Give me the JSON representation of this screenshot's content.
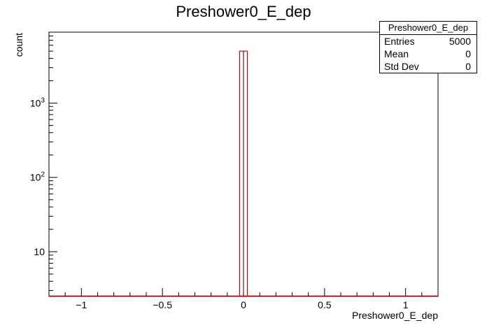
{
  "chart_data": {
    "type": "bar",
    "title": "Preshower0_E_dep",
    "xlabel": "Preshower0_E_dep",
    "ylabel": "count",
    "xlim": [
      -1.2,
      1.2
    ],
    "ylim": [
      2.5,
      9000
    ],
    "yscale": "log",
    "x_ticks": [
      {
        "value": -1,
        "label": "−1"
      },
      {
        "value": -0.5,
        "label": "−0.5"
      },
      {
        "value": 0,
        "label": "0"
      },
      {
        "value": 0.5,
        "label": "0.5"
      },
      {
        "value": 1,
        "label": "1"
      }
    ],
    "y_ticks": [
      {
        "value": 10,
        "base": "10",
        "exp": ""
      },
      {
        "value": 100,
        "base": "10",
        "exp": "2"
      },
      {
        "value": 1000,
        "base": "10",
        "exp": "3"
      }
    ],
    "bins": [
      {
        "x_low": -0.024,
        "x_high": 0.024,
        "value": 5000
      }
    ],
    "line_color": "#cc0000",
    "legend_placement": "top-right",
    "stats": {
      "name": "Preshower0_E_dep",
      "rows": [
        {
          "label": "Entries",
          "value": "5000"
        },
        {
          "label": "Mean",
          "value": "0"
        },
        {
          "label": "Std Dev",
          "value": "0"
        }
      ]
    }
  }
}
